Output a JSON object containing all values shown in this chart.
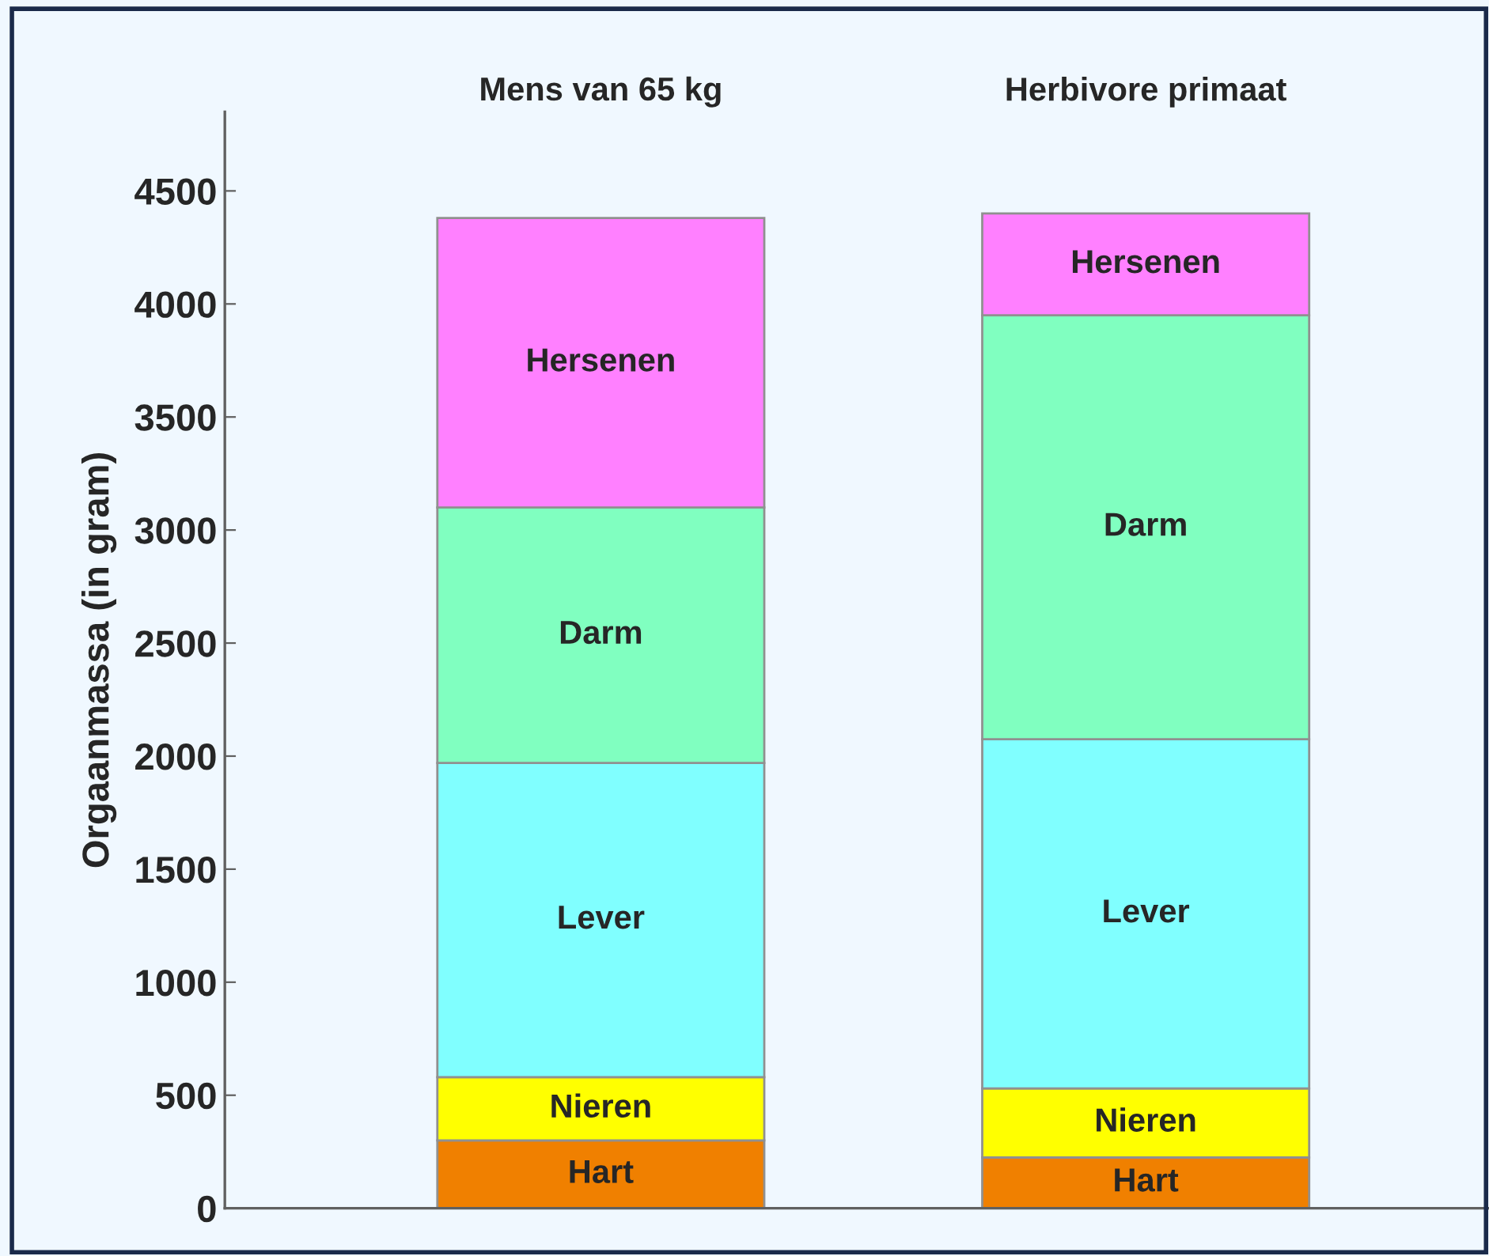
{
  "chart_data": {
    "type": "bar",
    "stacked": true,
    "ylabel": "Orgaanmassa (in gram)",
    "categories": [
      "Mens van 65 kg",
      "Herbivore primaat"
    ],
    "series": [
      {
        "name": "Hart",
        "color": "#f08000",
        "values": [
          300,
          225
        ]
      },
      {
        "name": "Nieren",
        "color": "#ffff00",
        "values": [
          280,
          305
        ]
      },
      {
        "name": "Lever",
        "color": "#80ffff",
        "values": [
          1390,
          1545
        ]
      },
      {
        "name": "Darm",
        "color": "#80ffc0",
        "values": [
          1130,
          1875
        ]
      },
      {
        "name": "Hersenen",
        "color": "#ff80ff",
        "values": [
          1280,
          450
        ]
      }
    ],
    "ylim": [
      0,
      4850
    ],
    "yticks": [
      0,
      500,
      1000,
      1500,
      2000,
      2500,
      3000,
      3500,
      4000,
      4500
    ],
    "grid": false,
    "legend": false
  }
}
